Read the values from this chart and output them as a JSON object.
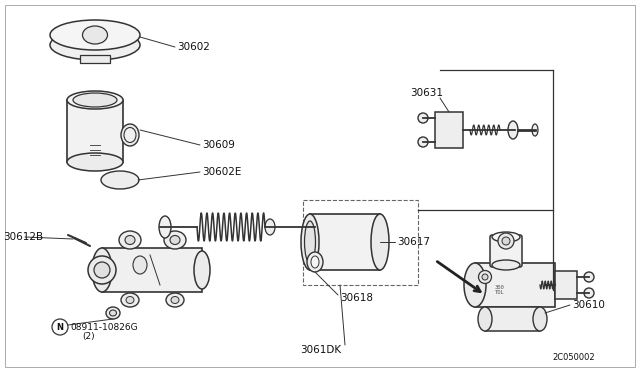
{
  "bg_color": "#ffffff",
  "line_color": "#333333",
  "text_color": "#111111",
  "label_fontsize": 7.5,
  "figsize": [
    6.4,
    3.72
  ],
  "dpi": 100,
  "parts": {
    "cap_label": "30602",
    "reservoir_label": "30609",
    "seal_label": "30602E",
    "bracket_label": "30612B",
    "bolt_label": "08911-10826G",
    "bolt_qty": "(2)",
    "cylinder_label": "30617",
    "cup_label": "30618",
    "kit_label": "3061DK",
    "pushrod_label": "30631",
    "assembly_label": "30610",
    "diagram_id": "2C050002"
  }
}
